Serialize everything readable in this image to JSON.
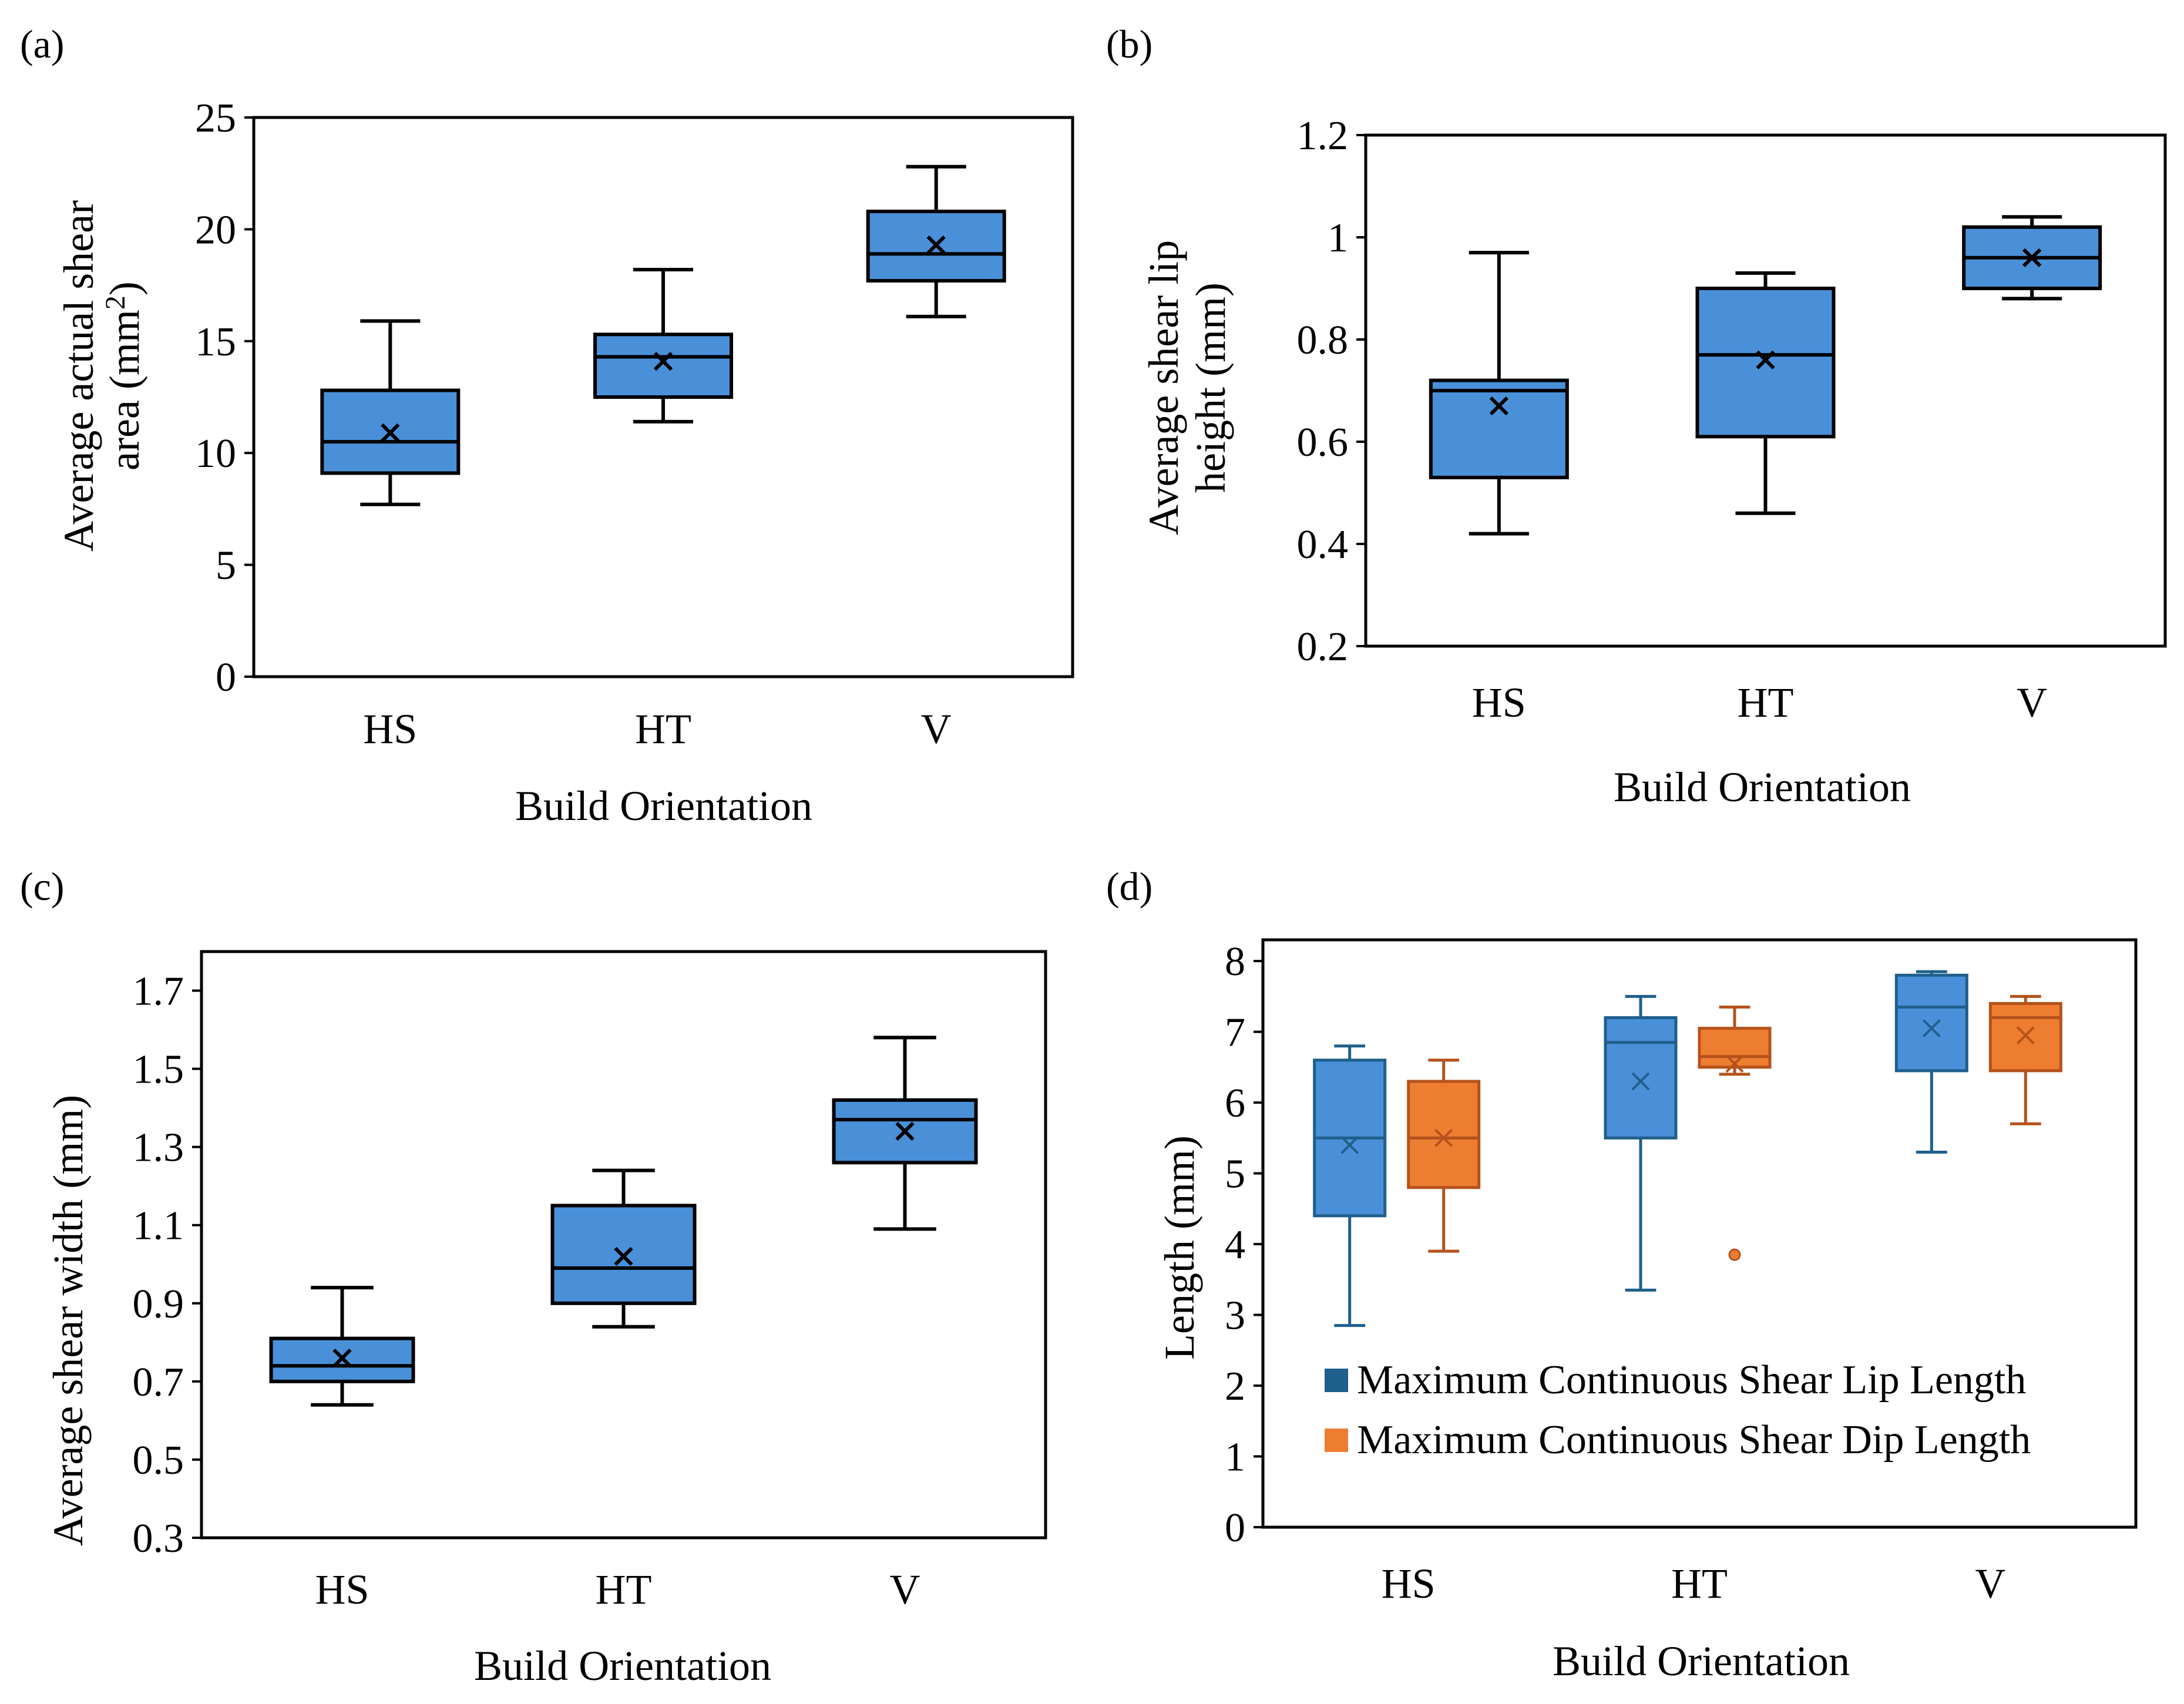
{
  "chart_data": [
    {
      "type": "box",
      "panel_label": "(a)",
      "xlabel": "Build Orientation",
      "ylabel_line1": "Average actual shear",
      "ylabel_line2_pre": "area (mm",
      "ylabel_sup": "2",
      "ylabel_line2_post": ")",
      "categories": [
        "HS",
        "HT",
        "V"
      ],
      "ylim": [
        0,
        25
      ],
      "yticks": [
        "0",
        "5",
        "10",
        "15",
        "20",
        "25"
      ],
      "ytick_values": [
        0,
        5,
        10,
        15,
        20,
        25
      ],
      "legend": "none",
      "series": [
        {
          "name": "Average actual shear area",
          "color": "#4a90d9",
          "boxes": [
            {
              "min": 7.7,
              "q1": 9.1,
              "median": 10.5,
              "q3": 12.8,
              "max": 15.9,
              "mean": 10.9
            },
            {
              "min": 11.4,
              "q1": 12.5,
              "median": 14.3,
              "q3": 15.3,
              "max": 18.2,
              "mean": 14.1
            },
            {
              "min": 16.1,
              "q1": 17.7,
              "median": 18.9,
              "q3": 20.8,
              "max": 22.8,
              "mean": 19.3
            }
          ]
        }
      ]
    },
    {
      "type": "box",
      "panel_label": "(b)",
      "xlabel": "Build Orientation",
      "ylabel_line1": "Average shear lip",
      "ylabel_line2": "height (mm)",
      "categories": [
        "HS",
        "HT",
        "V"
      ],
      "ylim": [
        0.2,
        1.2
      ],
      "yticks": [
        "0.2",
        "0.4",
        "0.6",
        "0.8",
        "1",
        "1.2"
      ],
      "ytick_values": [
        0.2,
        0.4,
        0.6,
        0.8,
        1.0,
        1.2
      ],
      "legend": "none",
      "series": [
        {
          "name": "Average shear lip height",
          "color": "#4a90d9",
          "boxes": [
            {
              "min": 0.42,
              "q1": 0.53,
              "median": 0.7,
              "q3": 0.72,
              "max": 0.97,
              "mean": 0.67
            },
            {
              "min": 0.46,
              "q1": 0.61,
              "median": 0.77,
              "q3": 0.9,
              "max": 0.93,
              "mean": 0.76
            },
            {
              "min": 0.88,
              "q1": 0.9,
              "median": 0.96,
              "q3": 1.02,
              "max": 1.04,
              "mean": 0.96
            }
          ]
        }
      ]
    },
    {
      "type": "box",
      "panel_label": "(c)",
      "xlabel": "Build Orientation",
      "ylabel": "Average shear width (mm)",
      "categories": [
        "HS",
        "HT",
        "V"
      ],
      "ylim": [
        0.3,
        1.8
      ],
      "yticks": [
        "0.3",
        "0.5",
        "0.7",
        "0.9",
        "1.1",
        "1.3",
        "1.5",
        "1.7"
      ],
      "ytick_values": [
        0.3,
        0.5,
        0.7,
        0.9,
        1.1,
        1.3,
        1.5,
        1.7
      ],
      "legend": "none",
      "series": [
        {
          "name": "Average shear width",
          "color": "#4a90d9",
          "boxes": [
            {
              "min": 0.64,
              "q1": 0.7,
              "median": 0.74,
              "q3": 0.81,
              "max": 0.94,
              "mean": 0.76
            },
            {
              "min": 0.84,
              "q1": 0.9,
              "median": 0.99,
              "q3": 1.15,
              "max": 1.24,
              "mean": 1.02
            },
            {
              "min": 1.09,
              "q1": 1.26,
              "median": 1.37,
              "q3": 1.42,
              "max": 1.58,
              "mean": 1.34
            }
          ]
        }
      ]
    },
    {
      "type": "box",
      "panel_label": "(d)",
      "xlabel": "Build Orientation",
      "ylabel": "Length (mm)",
      "categories": [
        "HS",
        "HT",
        "V"
      ],
      "ylim": [
        0,
        8.3
      ],
      "yticks": [
        "0",
        "1",
        "2",
        "3",
        "4",
        "5",
        "6",
        "7",
        "8"
      ],
      "ytick_values": [
        0,
        1,
        2,
        3,
        4,
        5,
        6,
        7,
        8
      ],
      "legend": "bottom-left",
      "series": [
        {
          "name": "Maximum Continuous Shear Lip Length",
          "color": "#4a90d9",
          "edge": "#1f5f8b",
          "legend_color": "#1f5f8b",
          "boxes": [
            {
              "min": 2.85,
              "q1": 4.4,
              "median": 5.5,
              "q3": 6.6,
              "max": 6.8,
              "mean": 5.4
            },
            {
              "min": 3.35,
              "q1": 5.5,
              "median": 6.85,
              "q3": 7.2,
              "max": 7.5,
              "mean": 6.3
            },
            {
              "min": 5.3,
              "q1": 6.45,
              "median": 7.35,
              "q3": 7.8,
              "max": 7.85,
              "mean": 7.05
            }
          ]
        },
        {
          "name": "Maximum Continuous Shear Dip Length",
          "color": "#ed7d31",
          "edge": "#b5521b",
          "legend_color": "#ed7d31",
          "boxes": [
            {
              "min": 3.9,
              "q1": 4.8,
              "median": 5.5,
              "q3": 6.3,
              "max": 6.6,
              "mean": 5.5
            },
            {
              "min": 6.4,
              "q1": 6.5,
              "median": 6.65,
              "q3": 7.05,
              "max": 7.35,
              "mean": 6.55,
              "outliers": [
                3.85
              ]
            },
            {
              "min": 5.7,
              "q1": 6.45,
              "median": 7.2,
              "q3": 7.4,
              "max": 7.5,
              "mean": 6.95
            }
          ]
        }
      ]
    }
  ]
}
